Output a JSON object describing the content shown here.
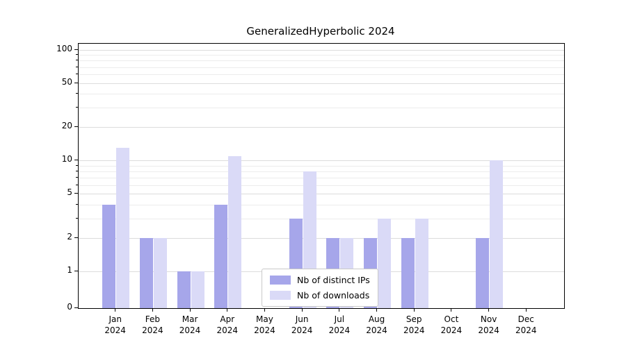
{
  "chart_data": {
    "type": "bar",
    "title": "GeneralizedHyperbolic 2024",
    "categories": [
      "Jan",
      "Feb",
      "Mar",
      "Apr",
      "May",
      "Jun",
      "Jul",
      "Aug",
      "Sep",
      "Oct",
      "Nov",
      "Dec"
    ],
    "x_year": "2024",
    "series": [
      {
        "name": "Nb of distinct IPs",
        "color": "#a6a6ea",
        "values": [
          4,
          2,
          1,
          4,
          0,
          3,
          2,
          2,
          2,
          0,
          2,
          0
        ]
      },
      {
        "name": "Nb of downloads",
        "color": "#dadaf7",
        "values": [
          13,
          2,
          1,
          11,
          0,
          8,
          2,
          3,
          3,
          0,
          10,
          0
        ]
      }
    ],
    "yscale": "symlog",
    "ylim": [
      0,
      100
    ],
    "y_ticks": [
      0,
      1,
      2,
      5,
      10,
      20,
      50,
      100
    ],
    "y_minor_ticks": [
      3,
      4,
      6,
      7,
      8,
      9,
      30,
      40,
      60,
      70,
      80,
      90
    ],
    "grid": "on",
    "legend_position": "lower center"
  }
}
